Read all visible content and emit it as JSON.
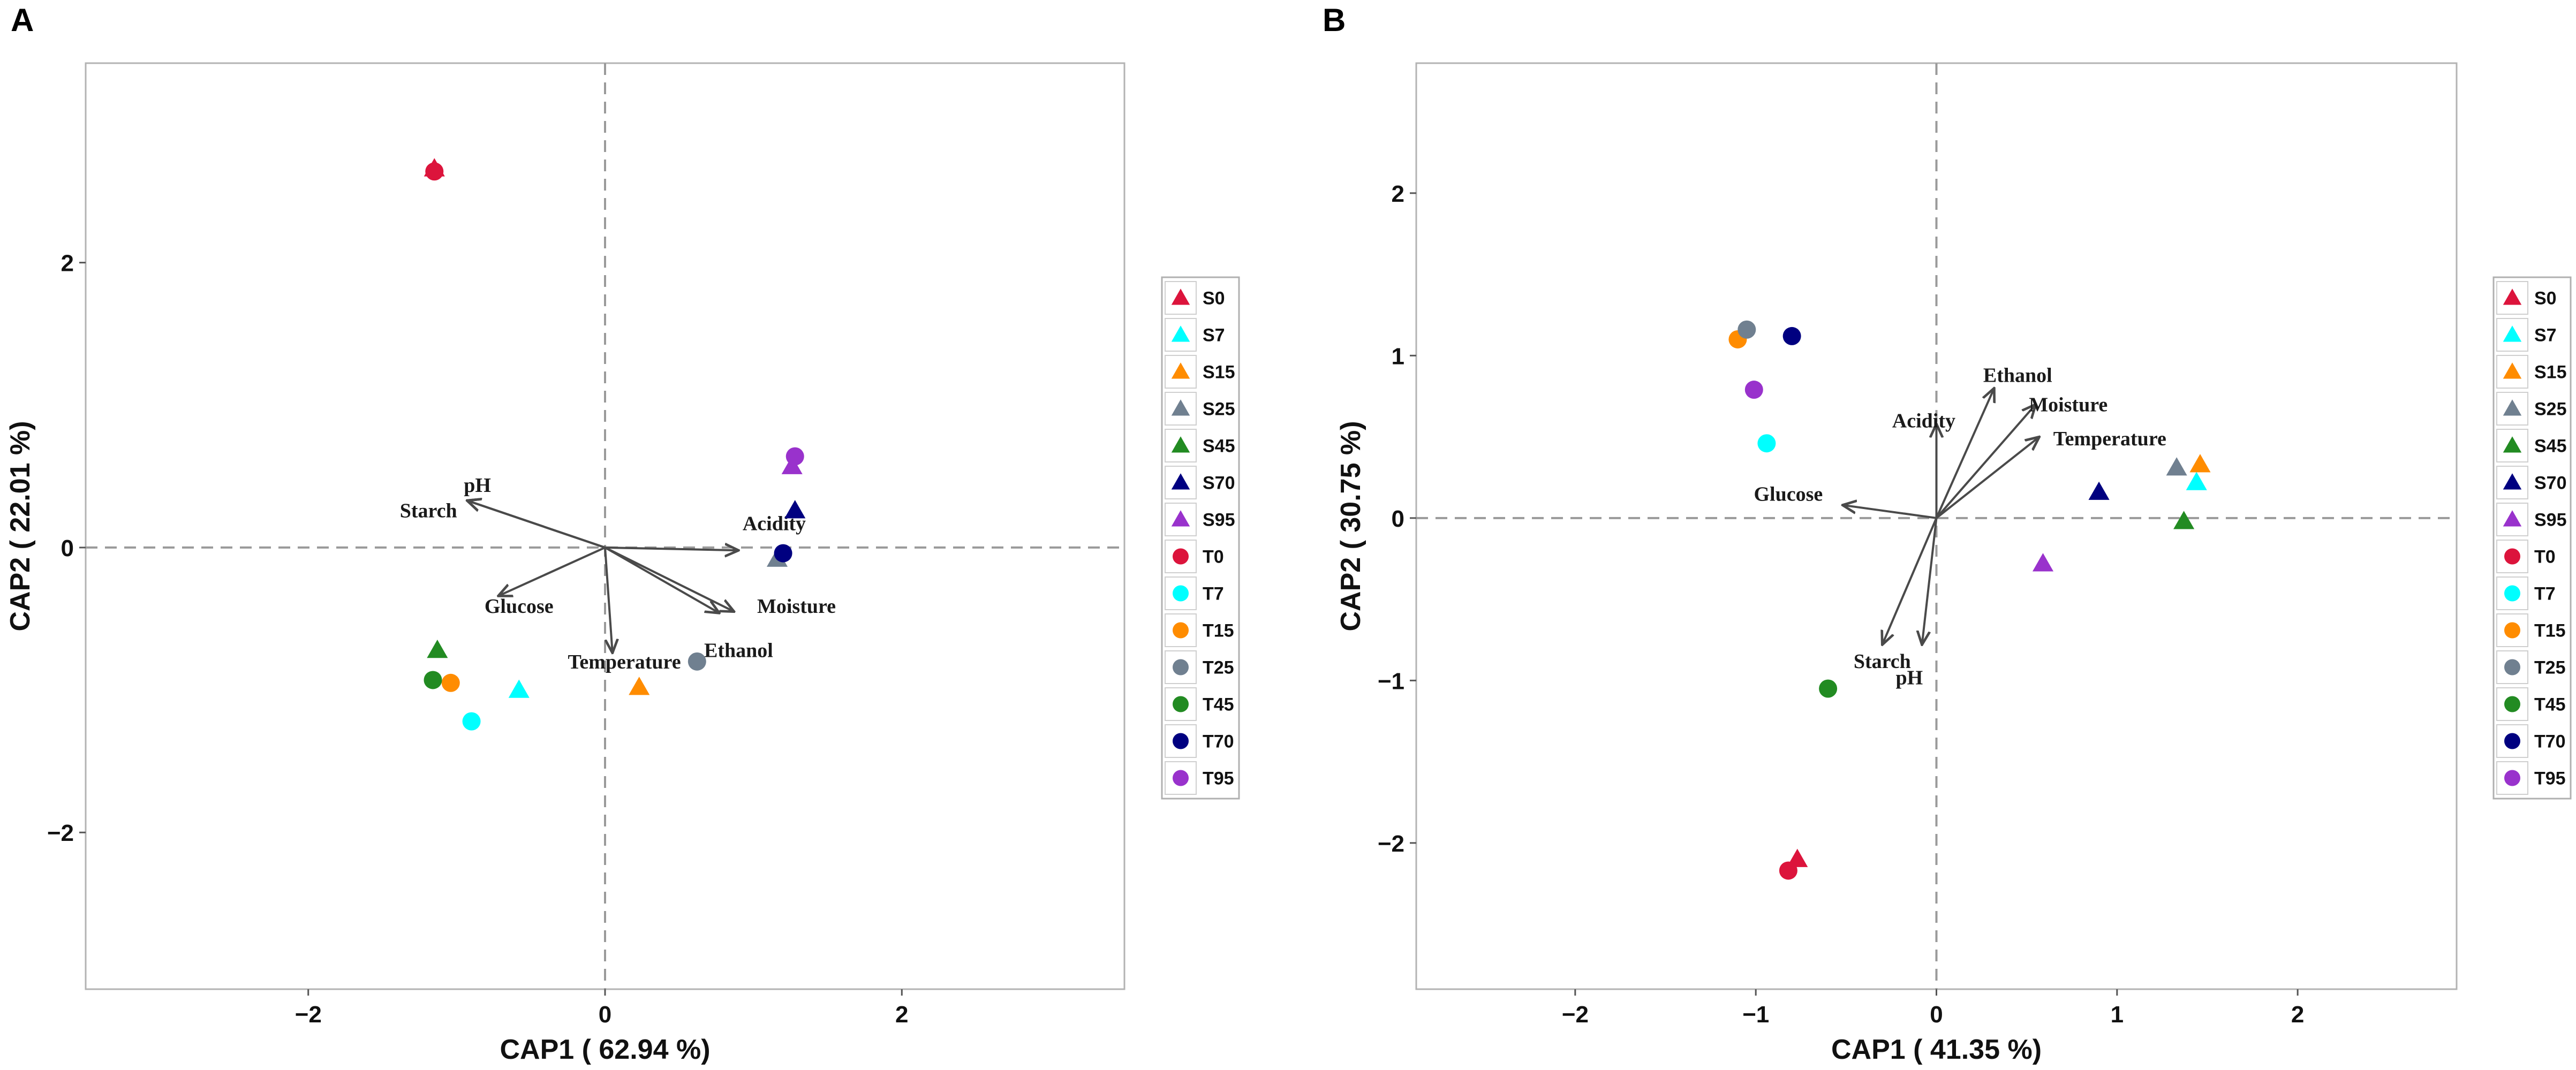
{
  "chart_data": [
    {
      "panel": "A",
      "type": "scatter",
      "subtype": "CAP ordination biplot",
      "xlabel": "CAP1 ( 62.94 %)",
      "ylabel": "CAP2 ( 22.01 %)",
      "xlim": [
        -3.5,
        3.5
      ],
      "ylim": [
        -3.1,
        3.4
      ],
      "xticks": [
        -2,
        0,
        2
      ],
      "yticks": [
        -2,
        0,
        2
      ],
      "xtick_labels": [
        "−2",
        "0",
        "2"
      ],
      "ytick_labels": [
        "−2",
        "0",
        "2"
      ],
      "reference_lines": {
        "x": 0,
        "y": 0
      },
      "samples": [
        {
          "name": "S0",
          "shape": "triangle",
          "color": "#dc143c",
          "x": -1.15,
          "y": 2.66
        },
        {
          "name": "T0",
          "shape": "circle",
          "color": "#dc143c",
          "x": -1.15,
          "y": 2.64
        },
        {
          "name": "S7",
          "shape": "triangle",
          "color": "#00ffff",
          "x": -0.58,
          "y": -1.0
        },
        {
          "name": "T7",
          "shape": "circle",
          "color": "#00ffff",
          "x": -0.9,
          "y": -1.22
        },
        {
          "name": "S15",
          "shape": "triangle",
          "color": "#ff8c00",
          "x": 0.23,
          "y": -0.98
        },
        {
          "name": "T15",
          "shape": "circle",
          "color": "#ff8c00",
          "x": -1.04,
          "y": -0.95
        },
        {
          "name": "S25",
          "shape": "triangle",
          "color": "#708090",
          "x": 1.16,
          "y": -0.08
        },
        {
          "name": "T25",
          "shape": "circle",
          "color": "#708090",
          "x": 0.62,
          "y": -0.8
        },
        {
          "name": "S45",
          "shape": "triangle",
          "color": "#228b22",
          "x": -1.13,
          "y": -0.72
        },
        {
          "name": "T45",
          "shape": "circle",
          "color": "#228b22",
          "x": -1.16,
          "y": -0.93
        },
        {
          "name": "S70",
          "shape": "triangle",
          "color": "#000080",
          "x": 1.28,
          "y": 0.26
        },
        {
          "name": "T70",
          "shape": "circle",
          "color": "#000080",
          "x": 1.2,
          "y": -0.04
        },
        {
          "name": "S95",
          "shape": "triangle",
          "color": "#9932cc",
          "x": 1.26,
          "y": 0.57
        },
        {
          "name": "T95",
          "shape": "circle",
          "color": "#9932cc",
          "x": 1.28,
          "y": 0.64
        }
      ],
      "vectors": [
        {
          "name": "pH",
          "x": -0.93,
          "y": 0.33,
          "label_x": -0.86,
          "label_y": 0.44
        },
        {
          "name": "Starch",
          "x": -0.93,
          "y": 0.33,
          "label_x": -1.19,
          "label_y": 0.26
        },
        {
          "name": "Glucose",
          "x": -0.72,
          "y": -0.34,
          "label_x": -0.58,
          "label_y": -0.41
        },
        {
          "name": "Temperature",
          "x": 0.05,
          "y": -0.74,
          "label_x": 0.13,
          "label_y": -0.8
        },
        {
          "name": "Acidity",
          "x": 0.9,
          "y": -0.02,
          "label_x": 1.14,
          "label_y": 0.17
        },
        {
          "name": "Moisture",
          "x": 0.87,
          "y": -0.45,
          "label_x": 1.29,
          "label_y": -0.41
        },
        {
          "name": "Ethanol",
          "x": 0.77,
          "y": -0.46,
          "label_x": 0.9,
          "label_y": -0.72
        }
      ]
    },
    {
      "panel": "B",
      "type": "scatter",
      "subtype": "CAP ordination biplot",
      "xlabel": "CAP1 ( 41.35 %)",
      "ylabel": "CAP2 ( 30.75 %)",
      "xlim": [
        -2.88,
        2.88
      ],
      "ylim": [
        -2.9,
        2.8
      ],
      "xticks": [
        -2,
        -1,
        0,
        1,
        2
      ],
      "yticks": [
        -2,
        -1,
        0,
        1,
        2
      ],
      "xtick_labels": [
        "−2",
        "−1",
        "0",
        "1",
        "2"
      ],
      "ytick_labels": [
        "−2",
        "−1",
        "0",
        "1",
        "2"
      ],
      "reference_lines": {
        "x": 0,
        "y": 0
      },
      "samples": [
        {
          "name": "S0",
          "shape": "triangle",
          "color": "#dc143c",
          "x": -0.77,
          "y": -2.1
        },
        {
          "name": "T0",
          "shape": "circle",
          "color": "#dc143c",
          "x": -0.82,
          "y": -2.17
        },
        {
          "name": "S7",
          "shape": "triangle",
          "color": "#00ffff",
          "x": 1.44,
          "y": 0.22
        },
        {
          "name": "T7",
          "shape": "circle",
          "color": "#00ffff",
          "x": -0.94,
          "y": 0.46
        },
        {
          "name": "S15",
          "shape": "triangle",
          "color": "#ff8c00",
          "x": 1.46,
          "y": 0.33
        },
        {
          "name": "T15",
          "shape": "circle",
          "color": "#ff8c00",
          "x": -1.1,
          "y": 1.1
        },
        {
          "name": "S25",
          "shape": "triangle",
          "color": "#708090",
          "x": 1.33,
          "y": 0.31
        },
        {
          "name": "T25",
          "shape": "circle",
          "color": "#708090",
          "x": -1.05,
          "y": 1.16
        },
        {
          "name": "S45",
          "shape": "triangle",
          "color": "#228b22",
          "x": 1.37,
          "y": -0.02
        },
        {
          "name": "T45",
          "shape": "circle",
          "color": "#228b22",
          "x": -0.6,
          "y": -1.05
        },
        {
          "name": "S70",
          "shape": "triangle",
          "color": "#000080",
          "x": 0.9,
          "y": 0.16
        },
        {
          "name": "T70",
          "shape": "circle",
          "color": "#000080",
          "x": -0.8,
          "y": 1.12
        },
        {
          "name": "S95",
          "shape": "triangle",
          "color": "#9932cc",
          "x": 0.59,
          "y": -0.28
        },
        {
          "name": "T95",
          "shape": "circle",
          "color": "#9932cc",
          "x": -1.01,
          "y": 0.79
        }
      ],
      "vectors": [
        {
          "name": "Ethanol",
          "x": 0.32,
          "y": 0.8,
          "label_x": 0.45,
          "label_y": 0.88
        },
        {
          "name": "Moisture",
          "x": 0.55,
          "y": 0.7,
          "label_x": 0.73,
          "label_y": 0.7
        },
        {
          "name": "Acidity",
          "x": 0.0,
          "y": 0.58,
          "label_x": -0.07,
          "label_y": 0.6
        },
        {
          "name": "Temperature",
          "x": 0.57,
          "y": 0.5,
          "label_x": 0.96,
          "label_y": 0.49
        },
        {
          "name": "Glucose",
          "x": -0.52,
          "y": 0.08,
          "label_x": -0.82,
          "label_y": 0.15
        },
        {
          "name": "Starch",
          "x": -0.3,
          "y": -0.78,
          "label_x": -0.3,
          "label_y": -0.88
        },
        {
          "name": "pH",
          "x": -0.08,
          "y": -0.78,
          "label_x": -0.15,
          "label_y": -0.98
        }
      ]
    }
  ],
  "legend": {
    "items": [
      {
        "label": "S0",
        "shape": "triangle",
        "color": "#dc143c"
      },
      {
        "label": "S7",
        "shape": "triangle",
        "color": "#00ffff"
      },
      {
        "label": "S15",
        "shape": "triangle",
        "color": "#ff8c00"
      },
      {
        "label": "S25",
        "shape": "triangle",
        "color": "#708090"
      },
      {
        "label": "S45",
        "shape": "triangle",
        "color": "#228b22"
      },
      {
        "label": "S70",
        "shape": "triangle",
        "color": "#000080"
      },
      {
        "label": "S95",
        "shape": "triangle",
        "color": "#9932cc"
      },
      {
        "label": "T0",
        "shape": "circle",
        "color": "#dc143c"
      },
      {
        "label": "T7",
        "shape": "circle",
        "color": "#00ffff"
      },
      {
        "label": "T15",
        "shape": "circle",
        "color": "#ff8c00"
      },
      {
        "label": "T25",
        "shape": "circle",
        "color": "#708090"
      },
      {
        "label": "T45",
        "shape": "circle",
        "color": "#228b22"
      },
      {
        "label": "T70",
        "shape": "circle",
        "color": "#000080"
      },
      {
        "label": "T95",
        "shape": "circle",
        "color": "#9932cc"
      }
    ]
  }
}
